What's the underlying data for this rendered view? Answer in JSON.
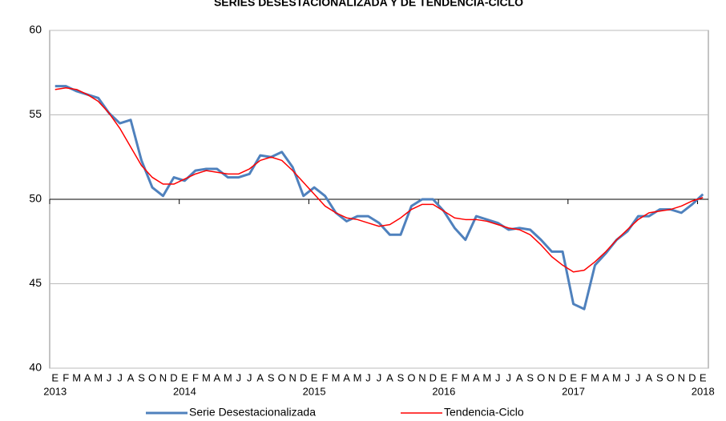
{
  "chart_data": {
    "type": "line",
    "title": "SERIES DESESTACIONALIZADA Y DE TENDENCIA-CICLO",
    "categories": [
      "E",
      "F",
      "M",
      "A",
      "M",
      "J",
      "J",
      "A",
      "S",
      "O",
      "N",
      "D",
      "E",
      "F",
      "M",
      "A",
      "M",
      "J",
      "J",
      "A",
      "S",
      "O",
      "N",
      "D",
      "E",
      "F",
      "M",
      "A",
      "M",
      "J",
      "J",
      "A",
      "S",
      "O",
      "N",
      "D",
      "E",
      "F",
      "M",
      "A",
      "M",
      "J",
      "J",
      "A",
      "S",
      "O",
      "N",
      "D",
      "E",
      "F",
      "M",
      "A",
      "M",
      "J",
      "J",
      "A",
      "S",
      "O",
      "N",
      "D",
      "E"
    ],
    "category_years": [
      "2013",
      null,
      null,
      null,
      null,
      null,
      null,
      null,
      null,
      null,
      null,
      null,
      "2014",
      null,
      null,
      null,
      null,
      null,
      null,
      null,
      null,
      null,
      null,
      null,
      "2015",
      null,
      null,
      null,
      null,
      null,
      null,
      null,
      null,
      null,
      null,
      null,
      "2016",
      null,
      null,
      null,
      null,
      null,
      null,
      null,
      null,
      null,
      null,
      null,
      "2017",
      null,
      null,
      null,
      null,
      null,
      null,
      null,
      null,
      null,
      null,
      null,
      "2018"
    ],
    "series": [
      {
        "name": "Serie Desestacionalizada",
        "color": "#4f81bd",
        "width": 3,
        "values": [
          56.7,
          56.7,
          56.4,
          56.2,
          56.0,
          55.1,
          54.5,
          54.7,
          52.3,
          50.7,
          50.2,
          51.3,
          51.1,
          51.7,
          51.8,
          51.8,
          51.3,
          51.3,
          51.5,
          52.6,
          52.5,
          52.8,
          51.9,
          50.2,
          50.7,
          50.2,
          49.2,
          48.7,
          49.0,
          49.0,
          48.6,
          47.9,
          47.9,
          49.6,
          50.0,
          50.0,
          49.3,
          48.3,
          47.6,
          49.0,
          48.8,
          48.6,
          48.2,
          48.3,
          48.2,
          47.6,
          46.9,
          46.9,
          43.8,
          43.5,
          46.1,
          46.8,
          47.6,
          48.1,
          49.0,
          49.0,
          49.4,
          49.4,
          49.2,
          49.7,
          50.3
        ]
      },
      {
        "name": "Tendencia-Ciclo",
        "color": "#ff0000",
        "width": 1.5,
        "values": [
          56.5,
          56.6,
          56.5,
          56.2,
          55.8,
          55.1,
          54.2,
          53.1,
          52.0,
          51.3,
          50.9,
          50.9,
          51.2,
          51.5,
          51.7,
          51.6,
          51.5,
          51.5,
          51.8,
          52.3,
          52.5,
          52.3,
          51.7,
          51.0,
          50.3,
          49.6,
          49.2,
          48.9,
          48.8,
          48.6,
          48.4,
          48.5,
          48.9,
          49.4,
          49.7,
          49.7,
          49.3,
          48.9,
          48.8,
          48.8,
          48.7,
          48.5,
          48.3,
          48.2,
          47.9,
          47.3,
          46.6,
          46.1,
          45.7,
          45.8,
          46.3,
          46.9,
          47.6,
          48.2,
          48.8,
          49.2,
          49.3,
          49.4,
          49.6,
          49.9,
          50.1
        ]
      }
    ],
    "ylim": [
      40,
      60
    ],
    "yticks": [
      40,
      45,
      50,
      55,
      60
    ],
    "grid": true,
    "x_axis_at": 50,
    "legend": "bottom"
  }
}
